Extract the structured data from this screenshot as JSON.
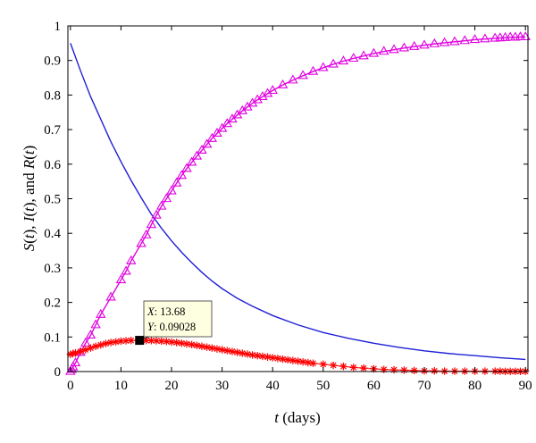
{
  "chart_data": {
    "type": "line",
    "xlabel": {
      "var": "t",
      "rest": " (days)"
    },
    "ylabel": {
      "parts": [
        {
          "text": "S",
          "italic": true
        },
        {
          "text": "(",
          "italic": false
        },
        {
          "text": "t",
          "italic": true
        },
        {
          "text": "), ",
          "italic": false
        },
        {
          "text": "I",
          "italic": true
        },
        {
          "text": "(",
          "italic": false
        },
        {
          "text": "t",
          "italic": true
        },
        {
          "text": "), and ",
          "italic": false
        },
        {
          "text": "R",
          "italic": true
        },
        {
          "text": "(",
          "italic": false
        },
        {
          "text": "t",
          "italic": true
        },
        {
          "text": ")",
          "italic": false
        }
      ]
    },
    "xlim": [
      -0.5,
      90.5
    ],
    "ylim": [
      0,
      1
    ],
    "xticks": [
      0,
      10,
      20,
      30,
      40,
      50,
      60,
      70,
      80,
      90
    ],
    "yticks": [
      0,
      0.1,
      0.2,
      0.3,
      0.4,
      0.5,
      0.6,
      0.7,
      0.8,
      0.9,
      1
    ],
    "ytick_labels": [
      "0",
      "0.1",
      "0.2",
      "0.3",
      "0.4",
      "0.5",
      "0.6",
      "0.7",
      "0.8",
      "0.9",
      "1"
    ],
    "grid": false,
    "series": [
      {
        "color": "#1f1fd6",
        "marker": "none",
        "points": [
          [
            0,
            0.95
          ],
          [
            2,
            0.87
          ],
          [
            4,
            0.795
          ],
          [
            6,
            0.73
          ],
          [
            8,
            0.665
          ],
          [
            10,
            0.607
          ],
          [
            12,
            0.553
          ],
          [
            14,
            0.503
          ],
          [
            16,
            0.455
          ],
          [
            18,
            0.415
          ],
          [
            20,
            0.378
          ],
          [
            22,
            0.345
          ],
          [
            24,
            0.315
          ],
          [
            26,
            0.287
          ],
          [
            28,
            0.262
          ],
          [
            30,
            0.24
          ],
          [
            33,
            0.212
          ],
          [
            36,
            0.189
          ],
          [
            40,
            0.162
          ],
          [
            45,
            0.135
          ],
          [
            50,
            0.113
          ],
          [
            55,
            0.096
          ],
          [
            60,
            0.082
          ],
          [
            65,
            0.07
          ],
          [
            70,
            0.06
          ],
          [
            75,
            0.052
          ],
          [
            80,
            0.046
          ],
          [
            85,
            0.04
          ],
          [
            90,
            0.035
          ]
        ]
      },
      {
        "color": "#e000e0",
        "marker": "triangle",
        "points": [
          [
            0,
            0
          ],
          [
            0.25,
            0.006
          ],
          [
            0.5,
            0.013
          ],
          [
            1,
            0.025
          ],
          [
            2,
            0.055
          ],
          [
            3,
            0.082
          ],
          [
            4,
            0.105
          ],
          [
            5,
            0.135
          ],
          [
            6,
            0.165
          ],
          [
            8,
            0.215
          ],
          [
            10,
            0.265
          ],
          [
            11,
            0.29
          ],
          [
            12,
            0.32
          ],
          [
            14,
            0.37
          ],
          [
            15,
            0.395
          ],
          [
            16,
            0.425
          ],
          [
            17,
            0.452
          ],
          [
            18,
            0.478
          ],
          [
            19,
            0.5
          ],
          [
            20,
            0.522
          ],
          [
            21,
            0.545
          ],
          [
            22,
            0.567
          ],
          [
            23,
            0.587
          ],
          [
            24,
            0.605
          ],
          [
            25,
            0.623
          ],
          [
            26,
            0.64
          ],
          [
            27,
            0.657
          ],
          [
            28,
            0.674
          ],
          [
            29,
            0.689
          ],
          [
            30,
            0.703
          ],
          [
            31,
            0.717
          ],
          [
            32,
            0.73
          ],
          [
            33,
            0.742
          ],
          [
            34,
            0.754
          ],
          [
            35,
            0.765
          ],
          [
            36,
            0.776
          ],
          [
            37,
            0.786
          ],
          [
            38,
            0.795
          ],
          [
            39,
            0.804
          ],
          [
            40,
            0.813
          ],
          [
            42,
            0.829
          ],
          [
            44,
            0.843
          ],
          [
            46,
            0.856
          ],
          [
            48,
            0.868
          ],
          [
            50,
            0.879
          ],
          [
            52,
            0.889
          ],
          [
            54,
            0.898
          ],
          [
            56,
            0.906
          ],
          [
            58,
            0.913
          ],
          [
            60,
            0.92
          ],
          [
            62,
            0.926
          ],
          [
            64,
            0.931
          ],
          [
            66,
            0.936
          ],
          [
            68,
            0.94
          ],
          [
            70,
            0.944
          ],
          [
            72,
            0.948
          ],
          [
            74,
            0.951
          ],
          [
            76,
            0.954
          ],
          [
            78,
            0.957
          ],
          [
            80,
            0.96
          ],
          [
            82,
            0.962
          ],
          [
            84,
            0.964
          ],
          [
            85,
            0.965
          ],
          [
            86,
            0.966
          ],
          [
            87,
            0.967
          ],
          [
            88,
            0.967
          ],
          [
            89,
            0.968
          ],
          [
            90,
            0.968
          ]
        ]
      },
      {
        "color": "#ff0000",
        "line_color": "#ff4040",
        "marker": "asterisk",
        "points": [
          [
            0,
            0.05
          ],
          [
            0.5,
            0.052
          ],
          [
            1,
            0.054
          ],
          [
            2,
            0.058
          ],
          [
            3,
            0.063
          ],
          [
            4,
            0.068
          ],
          [
            5,
            0.073
          ],
          [
            6,
            0.077
          ],
          [
            7,
            0.081
          ],
          [
            8,
            0.084
          ],
          [
            9,
            0.086
          ],
          [
            10,
            0.088
          ],
          [
            11,
            0.089
          ],
          [
            12,
            0.09
          ],
          [
            13.68,
            0.09028
          ],
          [
            15,
            0.09
          ],
          [
            16,
            0.0895
          ],
          [
            17,
            0.089
          ],
          [
            18,
            0.088
          ],
          [
            19,
            0.087
          ],
          [
            20,
            0.0855
          ],
          [
            21,
            0.084
          ],
          [
            22,
            0.082
          ],
          [
            23,
            0.08
          ],
          [
            24,
            0.078
          ],
          [
            25,
            0.0755
          ],
          [
            26,
            0.073
          ],
          [
            27,
            0.0705
          ],
          [
            28,
            0.068
          ],
          [
            29,
            0.0655
          ],
          [
            30,
            0.063
          ],
          [
            31,
            0.0605
          ],
          [
            32,
            0.058
          ],
          [
            33,
            0.0555
          ],
          [
            34,
            0.053
          ],
          [
            35,
            0.0505
          ],
          [
            36,
            0.048
          ],
          [
            37,
            0.046
          ],
          [
            38,
            0.044
          ],
          [
            39,
            0.042
          ],
          [
            40,
            0.04
          ],
          [
            41,
            0.038
          ],
          [
            42,
            0.036
          ],
          [
            43,
            0.034
          ],
          [
            44,
            0.032
          ],
          [
            45,
            0.03
          ],
          [
            46,
            0.028
          ],
          [
            47,
            0.026
          ],
          [
            48,
            0.024
          ],
          [
            50,
            0.021
          ],
          [
            52,
            0.018
          ],
          [
            54,
            0.015
          ],
          [
            56,
            0.012
          ],
          [
            58,
            0.01
          ],
          [
            60,
            0.008
          ],
          [
            62,
            0.006
          ],
          [
            64,
            0.005
          ],
          [
            66,
            0.004
          ],
          [
            68,
            0.003
          ],
          [
            70,
            0.002
          ],
          [
            72,
            0.002
          ],
          [
            74,
            0.001
          ],
          [
            76,
            0.001
          ],
          [
            78,
            0.001
          ],
          [
            80,
            0.001
          ],
          [
            82,
            0.001
          ],
          [
            84,
            0.001
          ],
          [
            85,
            0.001
          ],
          [
            86,
            0.0005
          ],
          [
            87,
            0.0005
          ],
          [
            88,
            0.0005
          ],
          [
            89,
            0.0005
          ],
          [
            90,
            0.0005
          ]
        ]
      }
    ],
    "datatip": {
      "x": 13.68,
      "y": 0.09028,
      "x_key": "X",
      "x_text": ": 13.68",
      "y_key": "Y",
      "y_text": ": 0.09028",
      "bg": "#fefee0"
    }
  }
}
